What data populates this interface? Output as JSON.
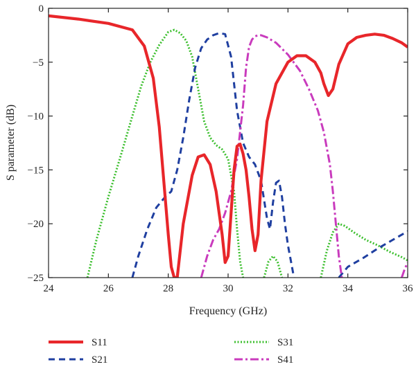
{
  "chart_data": {
    "type": "line",
    "xlabel": "Frequency (GHz)",
    "ylabel": "S parameter (dB)",
    "xlim": [
      24,
      36
    ],
    "ylim": [
      -25,
      0
    ],
    "xticks": [
      24,
      26,
      28,
      30,
      32,
      34,
      36
    ],
    "yticks": [
      0,
      -5,
      -10,
      -15,
      -20,
      -25
    ],
    "xtick_labels": [
      "24",
      "26",
      "28",
      "30",
      "32",
      "34",
      "36"
    ],
    "ytick_labels": [
      "0",
      "−5",
      "−10",
      "−15",
      "−20",
      "−25"
    ],
    "grid": false,
    "legend_position": "below",
    "series": [
      {
        "name": "S11",
        "color": "#e8262a",
        "style": "solid",
        "x": [
          24,
          25,
          26,
          26.8,
          27.2,
          27.5,
          27.7,
          27.85,
          28.0,
          28.1,
          28.2,
          28.3,
          28.5,
          28.8,
          29.0,
          29.2,
          29.4,
          29.6,
          29.8,
          29.9,
          30.0,
          30.1,
          30.2,
          30.3,
          30.4,
          30.5,
          30.6,
          30.7,
          30.8,
          30.9,
          31.0,
          31.1,
          31.3,
          31.6,
          32.0,
          32.3,
          32.6,
          32.9,
          33.1,
          33.2,
          33.35,
          33.5,
          33.7,
          34.0,
          34.3,
          34.6,
          34.9,
          35.2,
          35.5,
          35.8,
          36
        ],
        "y": [
          -0.7,
          -1.0,
          -1.4,
          -2.0,
          -3.5,
          -6.5,
          -11.0,
          -16.0,
          -21.0,
          -24.0,
          -25.0,
          -25.0,
          -20.0,
          -15.5,
          -13.8,
          -13.6,
          -14.5,
          -17.0,
          -21.0,
          -23.6,
          -23.0,
          -19.0,
          -15.0,
          -12.8,
          -12.6,
          -13.5,
          -15.0,
          -17.5,
          -20.5,
          -22.5,
          -21.0,
          -16.0,
          -10.5,
          -7.0,
          -5.0,
          -4.4,
          -4.4,
          -5.0,
          -6.0,
          -7.0,
          -8.1,
          -7.5,
          -5.2,
          -3.3,
          -2.7,
          -2.5,
          -2.4,
          -2.5,
          -2.8,
          -3.2,
          -3.6
        ]
      },
      {
        "name": "S21",
        "color": "#1f3fa0",
        "style": "dashed",
        "x": [
          26.8,
          27.0,
          27.3,
          27.6,
          27.9,
          28.1,
          28.3,
          28.5,
          28.7,
          28.9,
          29.1,
          29.3,
          29.5,
          29.7,
          29.9,
          30.1,
          30.3,
          30.5,
          30.7,
          30.9,
          31.1,
          31.3,
          31.4,
          31.5,
          31.6,
          31.7,
          31.8,
          31.9,
          32.0,
          32.1,
          32.2
        ],
        "y": [
          -25.0,
          -23.0,
          -20.5,
          -18.5,
          -17.5,
          -17.0,
          -15.0,
          -12.0,
          -8.5,
          -5.5,
          -3.7,
          -2.9,
          -2.5,
          -2.3,
          -2.4,
          -4.5,
          -9.5,
          -12.5,
          -13.8,
          -14.5,
          -16.0,
          -19.5,
          -20.5,
          -18.0,
          -16.2,
          -16.0,
          -17.5,
          -20.0,
          -22.0,
          -23.5,
          -25.0
        ]
      },
      {
        "name": "S21",
        "color": "#1f3fa0",
        "style": "dashed",
        "x": [
          33.7,
          34.0,
          34.5,
          35.0,
          35.5,
          36.0
        ],
        "y": [
          -25.0,
          -24.0,
          -23.2,
          -22.3,
          -21.5,
          -20.7
        ]
      },
      {
        "name": "S31",
        "color": "#3cbf2e",
        "style": "dotted",
        "x": [
          25.3,
          25.6,
          26.0,
          26.4,
          26.8,
          27.1,
          27.4,
          27.7,
          28.0,
          28.2,
          28.4,
          28.6,
          28.8,
          29.0,
          29.2,
          29.4,
          29.6,
          29.8,
          30.0,
          30.2,
          30.3,
          30.4,
          30.5
        ],
        "y": [
          -25.0,
          -21.5,
          -17.5,
          -13.8,
          -10.0,
          -7.2,
          -5.0,
          -3.4,
          -2.2,
          -2.0,
          -2.3,
          -3.0,
          -4.5,
          -7.5,
          -10.5,
          -12.0,
          -12.7,
          -13.1,
          -14.0,
          -17.0,
          -20.5,
          -23.5,
          -25.0
        ]
      },
      {
        "name": "S31",
        "color": "#3cbf2e",
        "style": "dotted",
        "x": [
          31.2,
          31.35,
          31.5,
          31.65,
          31.8
        ],
        "y": [
          -25.0,
          -23.5,
          -23.0,
          -23.5,
          -25.0
        ]
      },
      {
        "name": "S31",
        "color": "#3cbf2e",
        "style": "dotted",
        "x": [
          33.1,
          33.3,
          33.5,
          33.7,
          33.9,
          34.2,
          34.6,
          35.0,
          35.4,
          35.8,
          36.0
        ],
        "y": [
          -25.0,
          -22.5,
          -20.8,
          -20.0,
          -20.2,
          -20.8,
          -21.5,
          -22.0,
          -22.6,
          -23.1,
          -23.4
        ]
      },
      {
        "name": "S41",
        "color": "#c93bbd",
        "style": "dashdot",
        "x": [
          29.1,
          29.3,
          29.5,
          29.7,
          29.9,
          30.1,
          30.3,
          30.5,
          30.6,
          30.7,
          30.8,
          30.9,
          31.0,
          31.1,
          31.3,
          31.6,
          32.0,
          32.4,
          32.7,
          33.0,
          33.2,
          33.4,
          33.5,
          33.6,
          33.7,
          33.8
        ],
        "y": [
          -25.0,
          -23.0,
          -21.5,
          -20.5,
          -19.0,
          -17.0,
          -14.0,
          -9.0,
          -5.5,
          -3.6,
          -2.9,
          -2.6,
          -2.5,
          -2.5,
          -2.7,
          -3.2,
          -4.3,
          -5.8,
          -7.5,
          -9.5,
          -11.5,
          -14.5,
          -17.0,
          -20.0,
          -23.0,
          -25.0
        ]
      },
      {
        "name": "S41",
        "color": "#c93bbd",
        "style": "dashdot",
        "x": [
          35.8,
          35.9,
          36.0
        ],
        "y": [
          -25.0,
          -24.2,
          -23.6
        ]
      }
    ],
    "legend": [
      {
        "name": "S11",
        "color": "#e8262a",
        "style": "solid"
      },
      {
        "name": "S21",
        "color": "#1f3fa0",
        "style": "dashed"
      },
      {
        "name": "S31",
        "color": "#3cbf2e",
        "style": "dotted"
      },
      {
        "name": "S41",
        "color": "#c93bbd",
        "style": "dashdot"
      }
    ]
  }
}
